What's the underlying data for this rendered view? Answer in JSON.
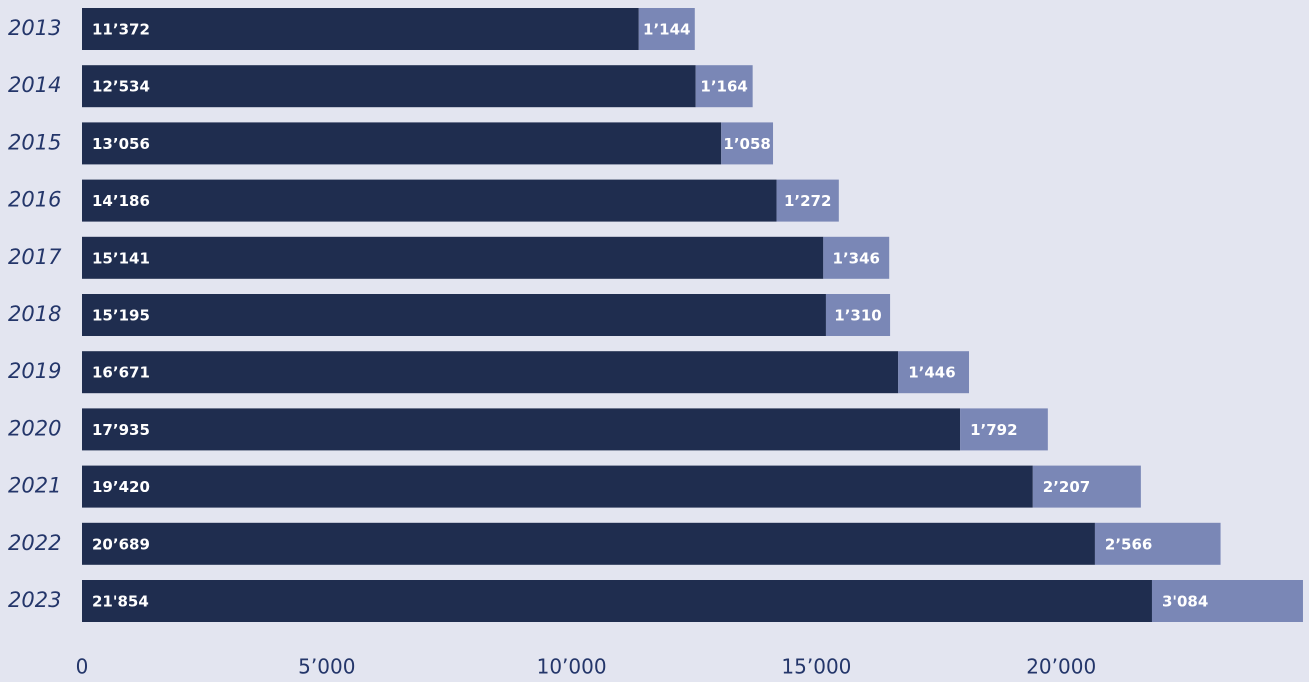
{
  "chart_data": {
    "type": "stacked-bar-horizontal",
    "categories": [
      "2013",
      "2014",
      "2015",
      "2016",
      "2017",
      "2018",
      "2019",
      "2020",
      "2021",
      "2022",
      "2023"
    ],
    "series": [
      {
        "color": "#1f2d4f",
        "values": [
          11372,
          12534,
          13056,
          14186,
          15141,
          15195,
          16671,
          17935,
          19420,
          20689,
          21854
        ],
        "value_labels": [
          "11’372",
          "12’534",
          "13’056",
          "14’186",
          "15’141",
          "15’195",
          "16’671",
          "17’935",
          "19’420",
          "20’689",
          "21'854"
        ]
      },
      {
        "color": "#7a87b6",
        "values": [
          1144,
          1164,
          1058,
          1272,
          1346,
          1310,
          1446,
          1792,
          2207,
          2566,
          3084
        ],
        "value_labels": [
          "1’144",
          "1’164",
          "1’058",
          "1’272",
          "1’346",
          "1’310",
          "1’446",
          "1’792",
          "2’207",
          "2’566",
          "3'084"
        ]
      }
    ],
    "xlim": [
      0,
      25000
    ],
    "xticks": [
      0,
      {
        "value": 5000,
        "label": "5’000"
      },
      {
        "value": 10000,
        "label": "10’000"
      },
      {
        "value": 15000,
        "label": "15’000"
      },
      {
        "value": 20000,
        "label": "20’000"
      }
    ]
  }
}
